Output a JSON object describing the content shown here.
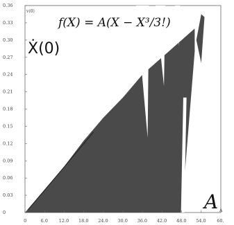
{
  "chart_data": {
    "type": "area",
    "title": "f(X) = A(X − X³/3!)",
    "ylabel": "Ẋ(0)",
    "xlabel": "A",
    "y_axis_small_label": "v(0)",
    "x_axis_small_label": "A",
    "xlim": [
      0,
      60
    ],
    "ylim": [
      0,
      0.36
    ],
    "x_ticks": [
      "0",
      "6.0",
      "12.0",
      "18.0",
      "24.0",
      "30.0",
      "36.0",
      "42.0",
      "48.0",
      "54.0",
      "60."
    ],
    "y_ticks": [
      "0",
      "0.03",
      "0.06",
      "0.09",
      "0.12",
      "0.15",
      "0.18",
      "0.21",
      "0.24",
      "0.27",
      "0.30",
      "0.33",
      "0.36"
    ],
    "grid": false,
    "fill_color": "#4a4a4a",
    "series": [
      {
        "x": [
          0,
          6,
          12,
          18,
          24,
          30,
          36,
          40,
          44,
          48,
          50,
          52,
          53,
          54,
          55
        ],
        "values": [
          0.0,
          0.04,
          0.08,
          0.125,
          0.165,
          0.2,
          0.24,
          0.26,
          0.28,
          0.3,
          0.31,
          0.32,
          0.33,
          0.34,
          0.345
        ]
      }
    ],
    "notches": [
      {
        "x_start": 34,
        "x_end": 38,
        "y_floor": 0.13
      },
      {
        "x_start": 40,
        "x_end": 43,
        "y_floor": 0.22
      },
      {
        "x_start": 46,
        "x_end": 47.5,
        "y_floor": 0.29
      }
    ],
    "cutoff_x": 52,
    "cutoff_y": 0.28
  }
}
